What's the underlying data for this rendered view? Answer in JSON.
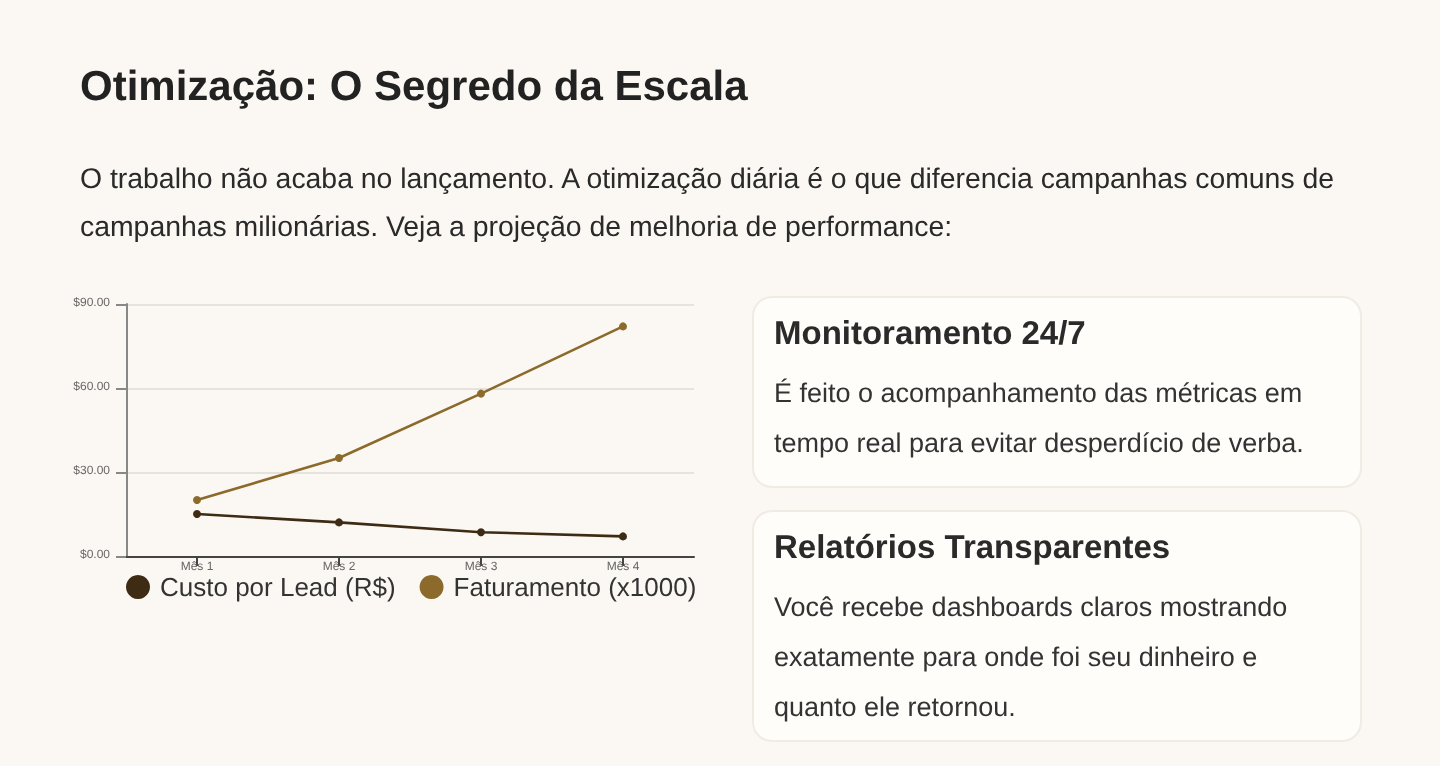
{
  "chart_data": [
    {
      "type": "line",
      "title": "Otimização: O Segredo da Escala",
      "subtitle": "O trabalho não acaba no lançamento. A otimização diária é o que diferencia campanhas comuns de campanhas milionárias. Veja a projeção de melhoria de performance:",
      "categories": [
        "Mês 1",
        "Mês 2",
        "Mês 3",
        "Mês 4"
      ],
      "series": [
        {
          "name": "Custo por Lead (R$)",
          "color": "#3d2b14",
          "values": [
            15,
            12,
            8.5,
            7
          ]
        },
        {
          "name": "Faturamento (x1000)",
          "color": "#8b6a2b",
          "values": [
            20,
            35,
            58,
            82
          ]
        }
      ],
      "ylim": [
        0,
        90
      ],
      "yticks": [
        {
          "value": 0,
          "label": "$0.00"
        },
        {
          "value": 30,
          "label": "$30.00"
        },
        {
          "value": 60,
          "label": "$60.00"
        },
        {
          "value": 90,
          "label": "$90.00"
        }
      ],
      "grid": "y",
      "legend": "bottom",
      "marker": "circle",
      "line_style": "solid"
    },
    {
      "type": "other",
      "title": "Monitoramento 24/7",
      "annotations": [
        "É feito o acompanhamento das métricas em tempo real para evitar desperdício de verba."
      ]
    },
    {
      "type": "other",
      "title": "Relatórios Transparentes",
      "annotations": [
        "Você recebe dashboards claros mostrando exatamente para onde foi seu dinheiro e quanto ele retornou."
      ]
    }
  ]
}
